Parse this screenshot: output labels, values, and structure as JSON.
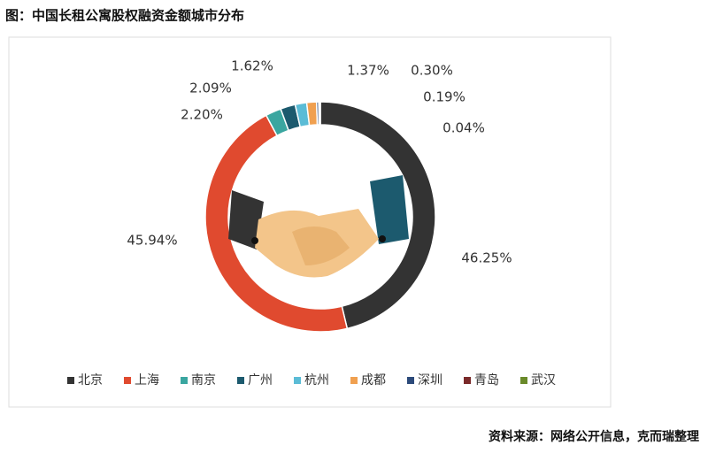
{
  "chart_data": {
    "type": "donut",
    "title": "图：中国长租公寓股权融资金额城市分布",
    "source": "资料来源：网络公开信息，克而瑞整理",
    "categories": [
      "北京",
      "上海",
      "南京",
      "广州",
      "杭州",
      "成都",
      "深圳",
      "青岛",
      "武汉"
    ],
    "values": [
      46.25,
      45.94,
      2.2,
      2.09,
      1.62,
      1.37,
      0.3,
      0.19,
      0.04
    ],
    "value_labels": [
      "46.25%",
      "45.94%",
      "2.20%",
      "2.09%",
      "1.62%",
      "1.37%",
      "0.30%",
      "0.19%",
      "0.04%"
    ],
    "colors": [
      "#333333",
      "#e04a2f",
      "#3aa6a0",
      "#1c5a6e",
      "#5bbcd6",
      "#f0a050",
      "#2c4a7a",
      "#7a2a2a",
      "#6a8a2a"
    ],
    "legend": "bottom"
  }
}
